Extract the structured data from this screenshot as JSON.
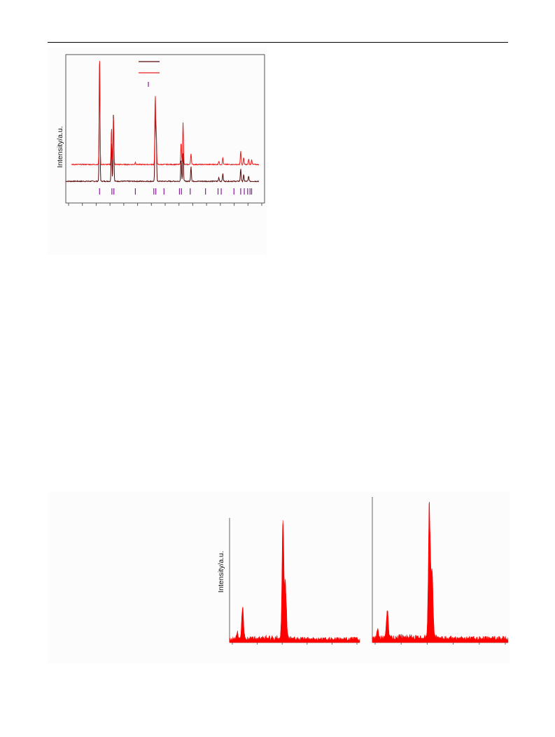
{
  "figures": {
    "xrd": {
      "ylabel": "Intensity/a.u.",
      "colors": {
        "top_trace": "#ee1c1c",
        "bottom_trace": "#5a0a0a",
        "bottom_peaks": "#e61e1e",
        "reference_ticks": "#8a1a9a",
        "axis": "#555555"
      }
    },
    "eds": {
      "ylabel": "Intensity/a.u.",
      "colors": {
        "spectrum_fill": "#ff0000",
        "axis": "#666666"
      }
    }
  },
  "chart_data": [
    {
      "type": "line",
      "title": "",
      "xlabel": "",
      "ylabel": "Intensity/a.u.",
      "legend": {
        "position": "top-left",
        "entries": [
          "",
          "",
          ""
        ]
      },
      "ticks_x_count": 15,
      "series": [
        {
          "name": "",
          "peaks": [
            [
              0.17,
              1.0
            ],
            [
              0.23,
              0.33
            ],
            [
              0.24,
              0.43
            ],
            [
              0.35,
              0.02
            ],
            [
              0.45,
              0.62
            ],
            [
              0.455,
              0.3
            ],
            [
              0.58,
              0.2
            ],
            [
              0.59,
              0.38
            ],
            [
              0.63,
              0.1
            ],
            [
              0.77,
              0.03
            ],
            [
              0.79,
              0.06
            ],
            [
              0.88,
              0.12
            ],
            [
              0.895,
              0.06
            ],
            [
              0.92,
              0.05
            ],
            [
              0.935,
              0.04
            ]
          ]
        },
        {
          "name": "",
          "peaks": [
            [
              0.17,
              1.0
            ],
            [
              0.23,
              0.32
            ],
            [
              0.24,
              0.55
            ],
            [
              0.45,
              0.6
            ],
            [
              0.455,
              0.35
            ],
            [
              0.58,
              0.18
            ],
            [
              0.59,
              0.22
            ],
            [
              0.63,
              0.12
            ],
            [
              0.77,
              0.03
            ],
            [
              0.79,
              0.06
            ],
            [
              0.88,
              0.1
            ],
            [
              0.895,
              0.05
            ],
            [
              0.92,
              0.04
            ]
          ]
        }
      ],
      "reference_positions": [
        0.17,
        0.232,
        0.242,
        0.35,
        0.443,
        0.453,
        0.494,
        0.572,
        0.582,
        0.626,
        0.703,
        0.766,
        0.782,
        0.846,
        0.88,
        0.898,
        0.915,
        0.927,
        0.935
      ]
    },
    {
      "type": "area",
      "title": "",
      "xlabel": "",
      "ylabel": "Intensity/a.u.",
      "ticks_x_count": 6,
      "peaks": [
        [
          0.06,
          0.05
        ],
        [
          0.1,
          0.28
        ],
        [
          0.41,
          1.0
        ],
        [
          0.43,
          0.45
        ]
      ]
    },
    {
      "type": "area",
      "title": "",
      "xlabel": "",
      "ylabel": "",
      "ticks_x_count": 6,
      "peaks": [
        [
          0.04,
          0.06
        ],
        [
          0.11,
          0.22
        ],
        [
          0.42,
          1.0
        ],
        [
          0.44,
          0.5
        ]
      ]
    }
  ]
}
